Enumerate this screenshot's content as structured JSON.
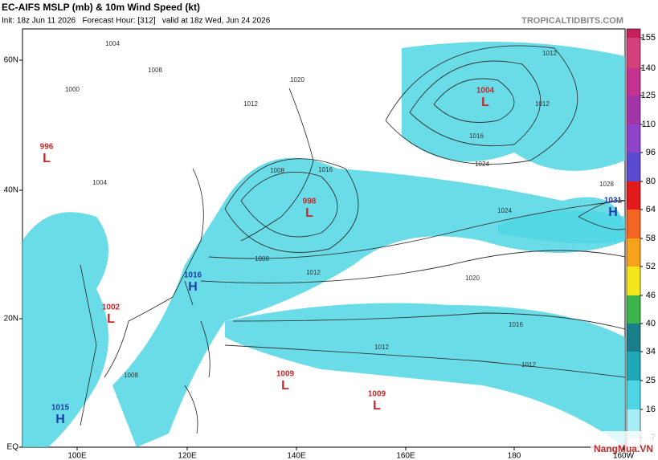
{
  "header": {
    "title": "EC-AIFS MSLP (mb) & 10m Wind Speed (kt)",
    "subtitle": "Init: 18z Jun 11 2026   Forecast Hour: [312]   valid at 18z Wed, Jun 24 2026",
    "site": "TROPICALTIDBITS.COM"
  },
  "map": {
    "lon_labels": [
      "100E",
      "120E",
      "140E",
      "160E",
      "180",
      "160W"
    ],
    "lat_labels": [
      "60N",
      "40N",
      "20N",
      "EQ"
    ],
    "centers": [
      {
        "type": "L",
        "value": 996
      },
      {
        "type": "L",
        "value": 1004
      },
      {
        "type": "L",
        "value": 998
      },
      {
        "type": "H",
        "value": 1031
      },
      {
        "type": "H",
        "value": 1016
      },
      {
        "type": "L",
        "value": 1002
      },
      {
        "type": "L",
        "value": 1009
      },
      {
        "type": "L",
        "value": 1009
      },
      {
        "type": "H",
        "value": 1015
      }
    ],
    "isobar_labels": [
      1004,
      1008,
      1000,
      1012,
      1020,
      1012,
      1008,
      1016,
      1024,
      1024,
      1012,
      1016,
      1020,
      1028,
      1012,
      1008,
      1016,
      1012,
      1012,
      1008,
      1004
    ]
  },
  "colorbar": {
    "ticks": [
      7,
      16,
      25,
      34,
      40,
      46,
      52,
      58,
      64,
      80,
      96,
      110,
      125,
      140,
      155
    ],
    "colors": [
      "#a8eef5",
      "#4fd6e4",
      "#1fa8b5",
      "#1a7f88",
      "#3cb44b",
      "#f2e61c",
      "#f7a21b",
      "#f26522",
      "#e31a1c",
      "#5b4bd1",
      "#8e44c9",
      "#a335a8",
      "#c2338e",
      "#d4407a",
      "#c21f5c"
    ]
  },
  "watermark": "NangMua.VN"
}
